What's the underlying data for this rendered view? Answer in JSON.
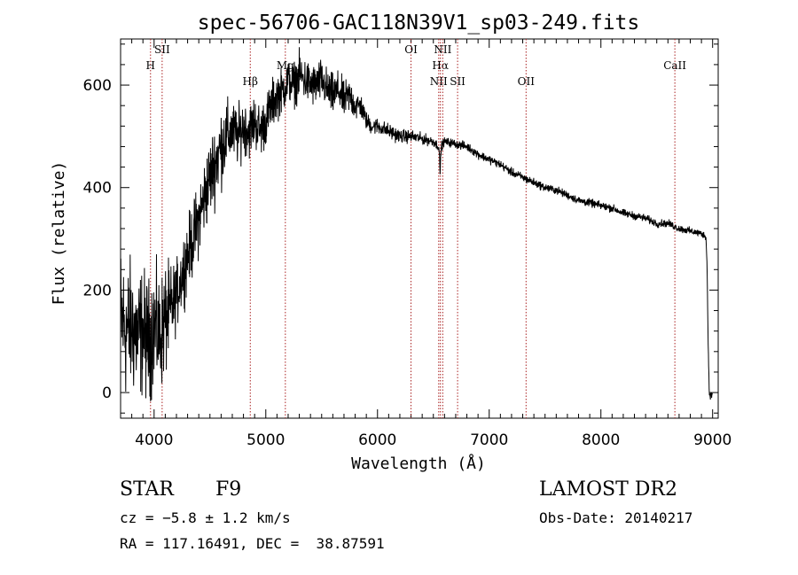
{
  "chart_data": {
    "type": "line",
    "title": "spec-56706-GAC118N39V1_sp03-249.fits",
    "xlabel": "Wavelength (Å)",
    "ylabel": "Flux (relative)",
    "xlim": [
      3700,
      9050
    ],
    "ylim": [
      -50,
      690
    ],
    "xticks": [
      4000,
      5000,
      6000,
      7000,
      8000,
      9000
    ],
    "yticks": [
      0,
      200,
      400,
      600
    ],
    "grid": false,
    "line_color": "#000000",
    "marker_color": "#aa2222",
    "spectral_lines": [
      {
        "name": "H",
        "wavelength": 3968,
        "row": 1
      },
      {
        "name": "SII",
        "wavelength": 4072,
        "row": 0
      },
      {
        "name": "Hβ",
        "wavelength": 4861,
        "row": 2
      },
      {
        "name": "Mg",
        "wavelength": 5175,
        "row": 1
      },
      {
        "name": "OI",
        "wavelength": 6300,
        "row": 0
      },
      {
        "name": "NII",
        "wavelength": 6548,
        "row": 2
      },
      {
        "name": "Hα",
        "wavelength": 6563,
        "row": 1
      },
      {
        "name": "NII",
        "wavelength": 6584,
        "row": 0
      },
      {
        "name": "SII",
        "wavelength": 6717,
        "row": 2
      },
      {
        "name": "OII",
        "wavelength": 7330,
        "row": 2
      },
      {
        "name": "CaII",
        "wavelength": 8662,
        "row": 1
      }
    ],
    "spectrum": {
      "x": [
        3700,
        3750,
        3800,
        3850,
        3900,
        3950,
        4000,
        4050,
        4100,
        4150,
        4200,
        4250,
        4300,
        4350,
        4400,
        4450,
        4500,
        4550,
        4600,
        4650,
        4700,
        4750,
        4800,
        4850,
        4900,
        4950,
        5000,
        5050,
        5100,
        5150,
        5200,
        5250,
        5300,
        5350,
        5400,
        5450,
        5500,
        5550,
        5600,
        5650,
        5700,
        5750,
        5800,
        5850,
        5900,
        5950,
        6000,
        6100,
        6200,
        6300,
        6400,
        6500,
        6550,
        6560,
        6570,
        6600,
        6700,
        6800,
        6900,
        7000,
        7100,
        7200,
        7300,
        7400,
        7500,
        7600,
        7700,
        7800,
        7900,
        8000,
        8100,
        8200,
        8300,
        8400,
        8500,
        8600,
        8700,
        8800,
        8900,
        8940,
        8950,
        8960,
        8970,
        8980,
        9000
      ],
      "y": [
        150,
        120,
        130,
        110,
        120,
        100,
        130,
        110,
        140,
        160,
        190,
        230,
        270,
        300,
        340,
        380,
        420,
        450,
        480,
        500,
        510,
        500,
        520,
        510,
        530,
        510,
        530,
        560,
        580,
        590,
        610,
        600,
        620,
        610,
        600,
        600,
        610,
        590,
        580,
        590,
        570,
        580,
        560,
        560,
        530,
        520,
        520,
        510,
        500,
        500,
        495,
        490,
        480,
        430,
        480,
        490,
        485,
        480,
        465,
        455,
        445,
        430,
        420,
        410,
        400,
        395,
        385,
        375,
        370,
        365,
        360,
        350,
        345,
        340,
        330,
        330,
        320,
        315,
        310,
        305,
        250,
        100,
        0,
        -5,
        -5
      ]
    },
    "noise_sigma": {
      "x": [
        3700,
        4100,
        4200,
        4600,
        4700,
        5200,
        5300,
        5600,
        5800,
        5900,
        6600,
        9000
      ],
      "y": [
        95,
        75,
        45,
        55,
        40,
        30,
        30,
        28,
        22,
        12,
        6,
        5
      ]
    }
  },
  "info": {
    "object_type": "STAR",
    "subclass": "F9",
    "survey": "LAMOST DR2",
    "redshift": "cz = −5.8 ± 1.2 km/s",
    "obs_date": "Obs-Date: 20140217",
    "coords": "RA = 117.16491, DEC =  38.87591"
  }
}
